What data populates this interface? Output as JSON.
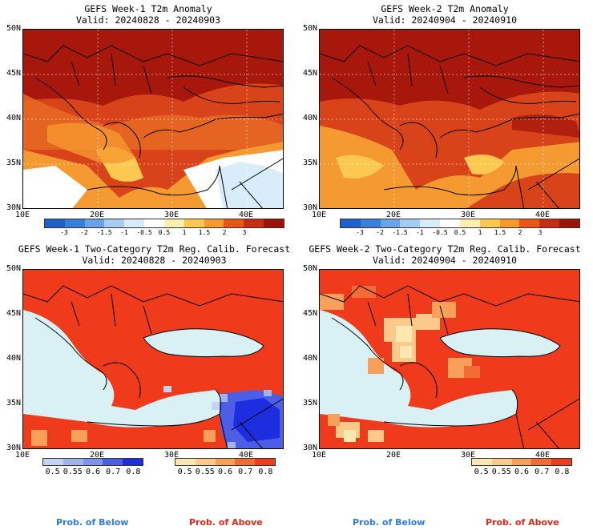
{
  "panels": [
    {
      "title_line1": "GEFS Week-1 T2m Anomaly",
      "title_line2": "Valid: 20240828 - 20240903",
      "type": "anomaly",
      "region": "Eastern Mediterranean / Balkans / Black Sea",
      "lat_labels": [
        "50N",
        "45N",
        "40N",
        "35N",
        "30N"
      ],
      "lon_labels": [
        "10E",
        "20E",
        "30E",
        "40E"
      ]
    },
    {
      "title_line1": "GEFS Week-2 T2m Anomaly",
      "title_line2": "Valid: 20240904 - 20240910",
      "type": "anomaly",
      "region": "Eastern Mediterranean / Balkans / Black Sea",
      "lat_labels": [
        "50N",
        "45N",
        "40N",
        "35N",
        "30N"
      ],
      "lon_labels": [
        "10E",
        "20E",
        "30E",
        "40E"
      ]
    },
    {
      "title_line1": "GEFS Week-1 Two-Category T2m Reg. Calib. Forecast",
      "title_line2": "Valid: 20240828 - 20240903",
      "type": "probability",
      "region": "Eastern Mediterranean / Balkans / Black Sea",
      "lat_labels": [
        "50N",
        "45N",
        "40N",
        "35N",
        "30N"
      ],
      "lon_labels": [
        "10E",
        "20E",
        "30E",
        "40E"
      ]
    },
    {
      "title_line1": "GEFS Week-2 Two-Category T2m Reg. Calib. Forecast",
      "title_line2": "Valid: 20240904 - 20240910",
      "type": "probability",
      "region": "Eastern Mediterranean / Balkans / Black Sea",
      "lat_labels": [
        "50N",
        "45N",
        "40N",
        "35N",
        "30N"
      ],
      "lon_labels": [
        "10E",
        "20E",
        "30E",
        "40E"
      ]
    }
  ],
  "anomaly_colorbar": {
    "labels": [
      "-3",
      "-2",
      "-1.5",
      "-1",
      "-0.5",
      "0.5",
      "1",
      "1.5",
      "2",
      "3"
    ],
    "colors": [
      "#1f5fc7",
      "#3a7fd8",
      "#6aa3e5",
      "#a7cdf0",
      "#d9ecfa",
      "#ffffff",
      "#fff0b0",
      "#fcc850",
      "#f59a30",
      "#e8561a",
      "#c62d14",
      "#9a140c"
    ]
  },
  "prob_below_colorbar": {
    "labels": [
      "0.5",
      "0.55",
      "0.6",
      "0.7",
      "0.8"
    ],
    "colors": [
      "#c4d3f5",
      "#9fb4ef",
      "#7e93ea",
      "#4d5ee6",
      "#1c2ee0"
    ]
  },
  "prob_above_colorbar": {
    "labels": [
      "0.5",
      "0.55",
      "0.6",
      "0.7",
      "0.8"
    ],
    "colors": [
      "#fde7b0",
      "#fbc98a",
      "#f8a05a",
      "#f36b35",
      "#ef3a1c"
    ]
  },
  "footer": {
    "below_label": "Prob. of Below",
    "above_label": "Prob. of Above",
    "below_color": "#2f7bd9",
    "above_color": "#e0271a"
  }
}
